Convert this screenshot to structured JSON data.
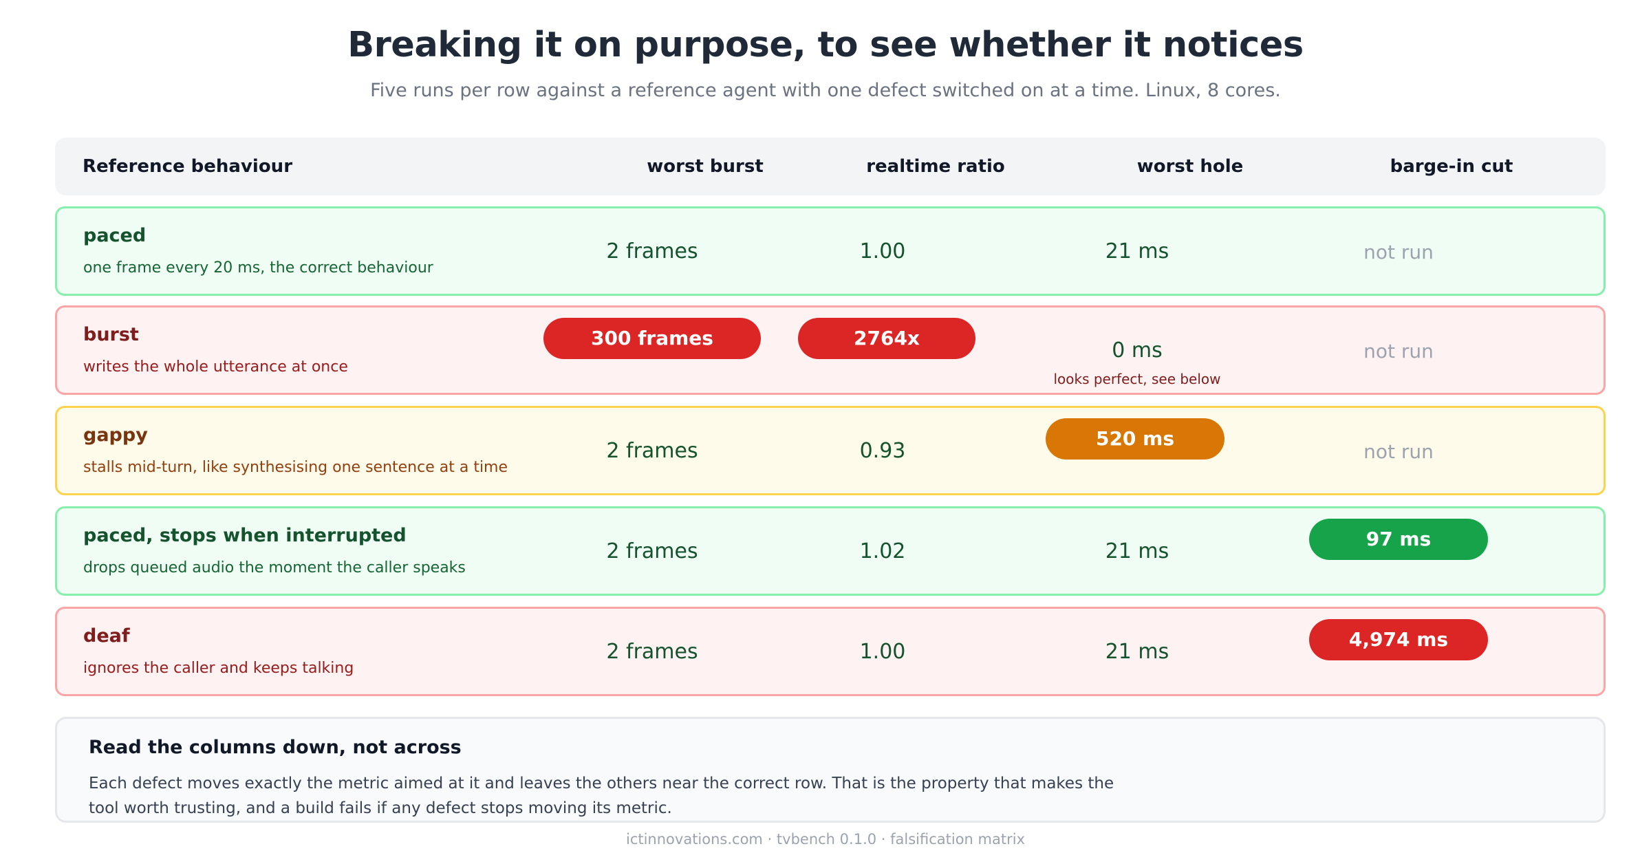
{
  "title": "Breaking it on purpose, to see whether it notices",
  "subtitle": "Five runs per row against a reference agent with one defect switched on at a time. Linux, 8 cores.",
  "header": {
    "behaviour": "Reference behaviour",
    "worst_burst": "worst burst",
    "realtime_ratio": "realtime ratio",
    "worst_hole": "worst hole",
    "barge_in_cut": "barge-in cut"
  },
  "rows": [
    {
      "name": "paced",
      "desc": "one frame every 20 ms, the correct behaviour",
      "status": "pass",
      "worst_burst": "2 frames",
      "realtime_ratio": "1.00",
      "worst_hole": "21 ms",
      "barge_in_cut": "not run"
    },
    {
      "name": "burst",
      "desc": "writes the whole utterance at once",
      "status": "fail",
      "worst_burst": "300 frames",
      "realtime_ratio": "2764x",
      "worst_hole": "0 ms",
      "worst_hole_note": "looks perfect, see below",
      "barge_in_cut": "not run"
    },
    {
      "name": "gappy",
      "desc": "stalls mid-turn, like synthesising one sentence at a time",
      "status": "warn",
      "worst_burst": "2 frames",
      "realtime_ratio": "0.93",
      "worst_hole": "520 ms",
      "barge_in_cut": "not run"
    },
    {
      "name": "paced, stops when interrupted",
      "desc": "drops queued audio the moment the caller speaks",
      "status": "pass",
      "worst_burst": "2 frames",
      "realtime_ratio": "1.02",
      "worst_hole": "21 ms",
      "barge_in_cut": "97 ms"
    },
    {
      "name": "deaf",
      "desc": "ignores the caller and keeps talking",
      "status": "fail",
      "worst_burst": "2 frames",
      "realtime_ratio": "1.00",
      "worst_hole": "21 ms",
      "barge_in_cut": "4,974 ms"
    }
  ],
  "note": {
    "title": "Read the columns down, not across",
    "body": "Each defect moves exactly the metric aimed at it and leaves the others near the correct row. That is the property that makes the tool worth trusting, and a build fails if any defect stops moving its metric."
  },
  "footer": "ictinnovations.com · tvbench 0.1.0 · falsification matrix",
  "colors": {
    "pass_bg": "#f0fdf4",
    "pass_border": "#86efac",
    "fail_bg": "#fef2f2",
    "fail_border": "#fca5a5",
    "warn_bg": "#fffbeb",
    "warn_border": "#fcd34d",
    "pill_red": "#dc2626",
    "pill_orange": "#d97706",
    "pill_green": "#16a34a"
  }
}
